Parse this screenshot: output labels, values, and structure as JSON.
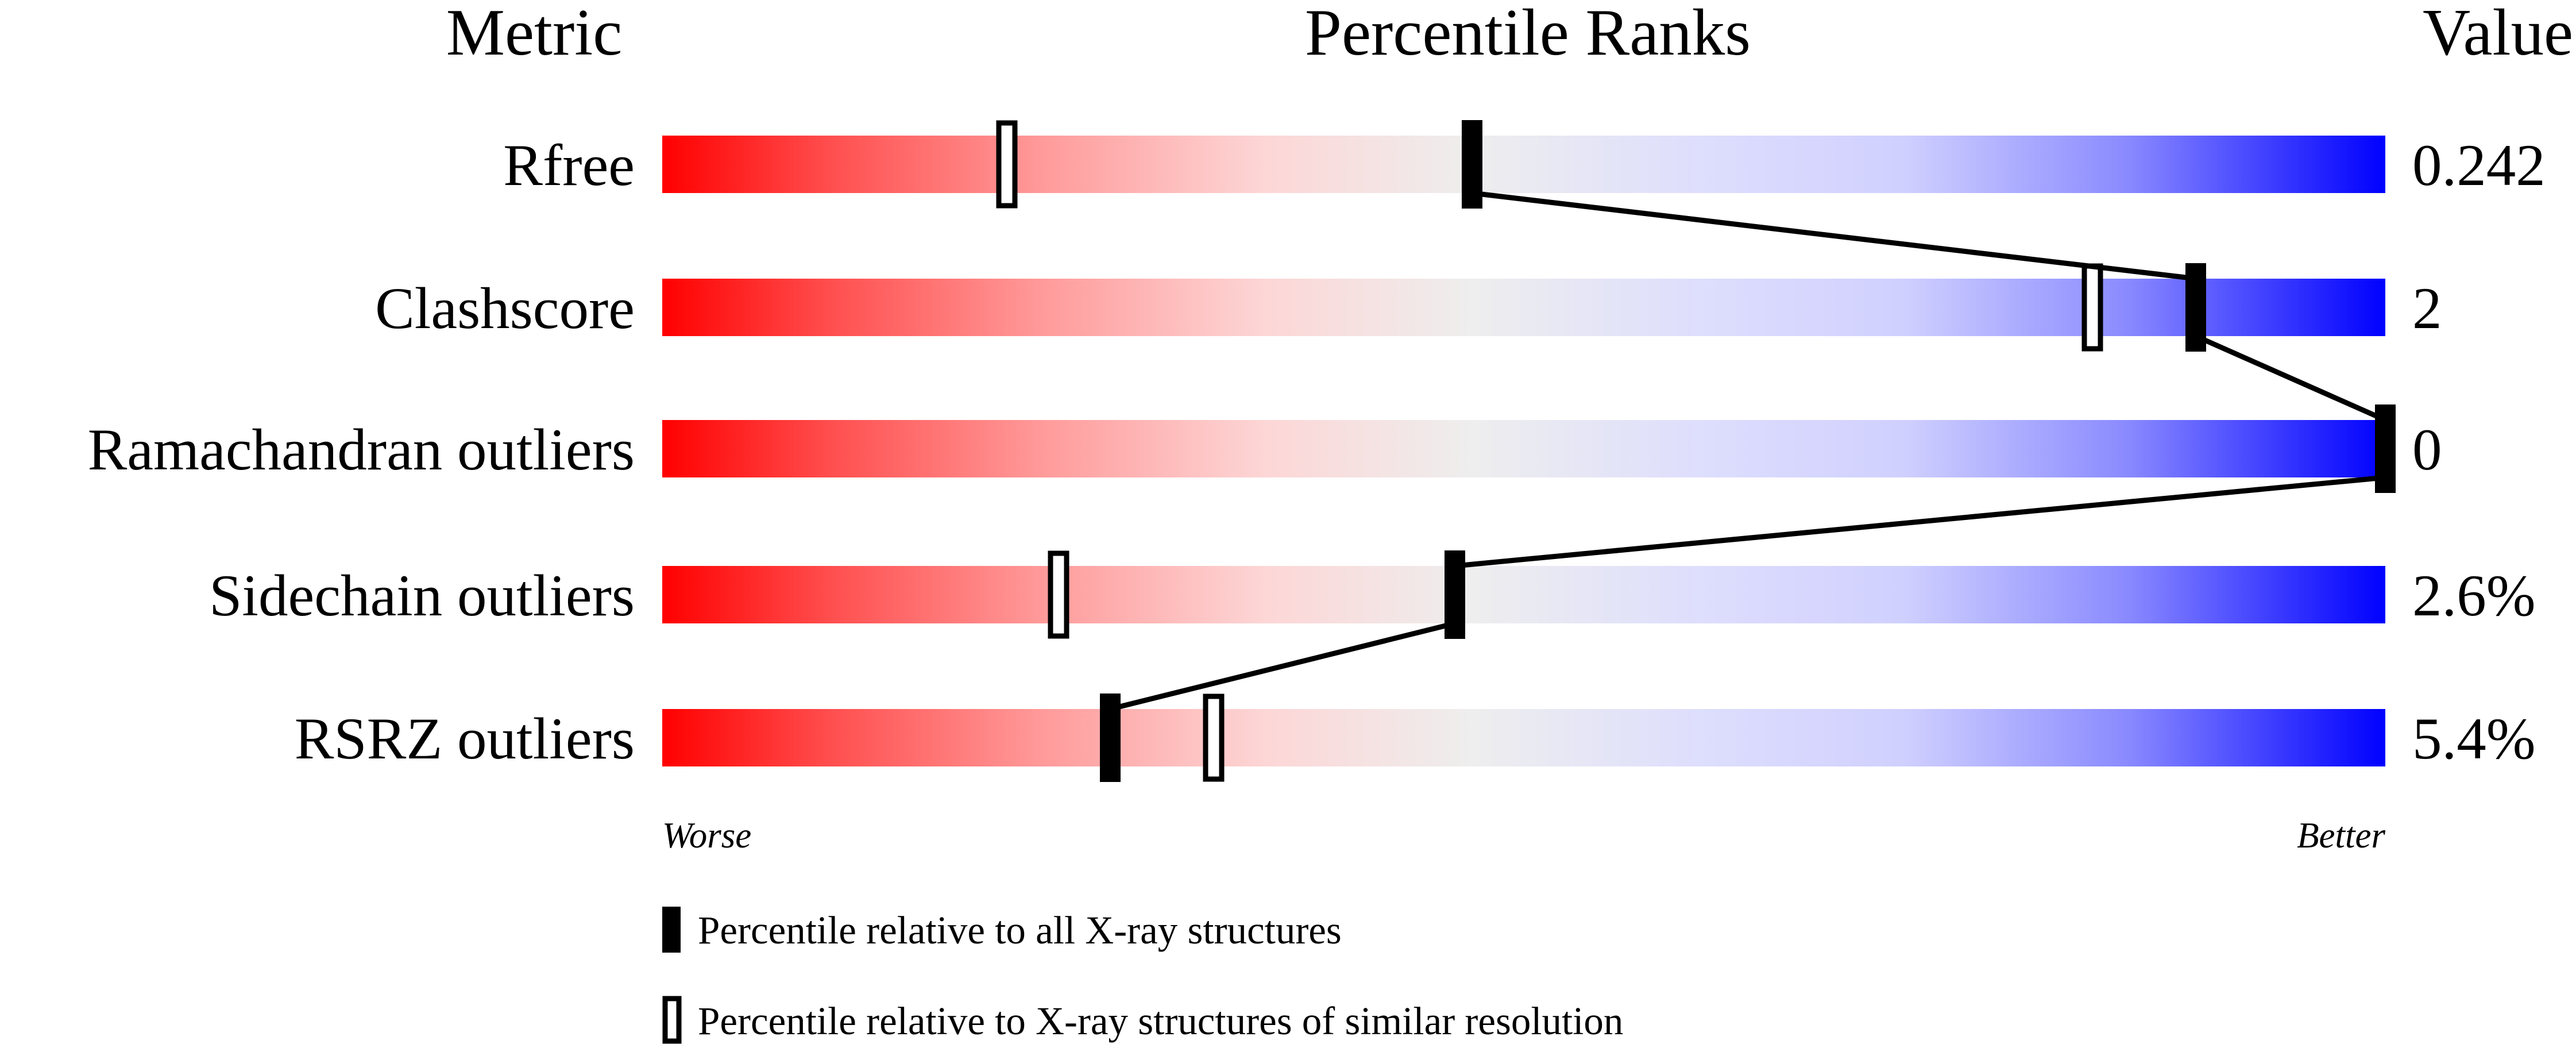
{
  "chart_data": {
    "type": "percentile-slider",
    "headers": {
      "metric": "Metric",
      "ranks": "Percentile Ranks",
      "value": "Value"
    },
    "xlim": [
      0,
      100
    ],
    "axis_labels": {
      "left": "Worse",
      "right": "Better"
    },
    "metrics": [
      {
        "name": "Rfree",
        "value": "0.242",
        "percentile_all": 47,
        "percentile_similar": 20
      },
      {
        "name": "Clashscore",
        "value": "2",
        "percentile_all": 89,
        "percentile_similar": 83
      },
      {
        "name": "Ramachandran outliers",
        "value": "0",
        "percentile_all": 100,
        "percentile_similar": 100
      },
      {
        "name": "Sidechain outliers",
        "value": "2.6%",
        "percentile_all": 46,
        "percentile_similar": 23
      },
      {
        "name": "RSRZ outliers",
        "value": "5.4%",
        "percentile_all": 26,
        "percentile_similar": 32
      }
    ],
    "legend": [
      {
        "marker": "filled",
        "label": "Percentile relative to all X-ray structures"
      },
      {
        "marker": "open",
        "label": "Percentile relative to X-ray structures of similar resolution"
      }
    ],
    "colors": {
      "worse": "#ff0000",
      "middle": "#eeeeee",
      "better": "#0000ff",
      "marker": "#000000"
    }
  }
}
